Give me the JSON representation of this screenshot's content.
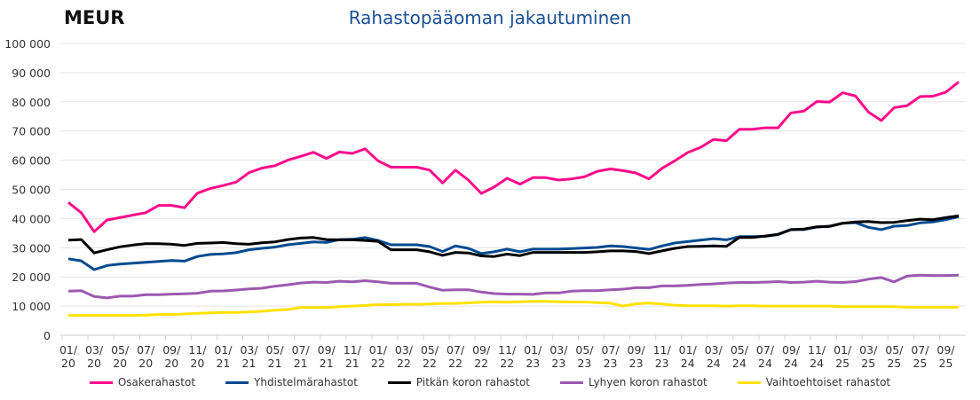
{
  "chart_data": {
    "type": "line",
    "title": "Rahastopääoman jakautuminen",
    "unit_label": "MEUR",
    "ylim": [
      0,
      100000
    ],
    "yticks": [
      0,
      10000,
      20000,
      30000,
      40000,
      50000,
      60000,
      70000,
      80000,
      90000,
      100000
    ],
    "ytick_labels": [
      "0",
      "10 000",
      "20 000",
      "30 000",
      "40 000",
      "50 000",
      "60 000",
      "70 000",
      "80 000",
      "90 000",
      "100 000"
    ],
    "grid": true,
    "legend": "bottom",
    "categories": [
      "01/20",
      "02/20",
      "03/20",
      "04/20",
      "05/20",
      "06/20",
      "07/20",
      "08/20",
      "09/20",
      "10/20",
      "11/20",
      "12/20",
      "01/21",
      "02/21",
      "03/21",
      "04/21",
      "05/21",
      "06/21",
      "07/21",
      "08/21",
      "09/21",
      "10/21",
      "11/21",
      "12/21",
      "01/22",
      "02/22",
      "03/22",
      "04/22",
      "05/22",
      "06/22",
      "07/22",
      "08/22",
      "09/22",
      "10/22",
      "11/22",
      "12/22",
      "01/23",
      "02/23",
      "03/23",
      "04/23",
      "05/23",
      "06/23",
      "07/23",
      "08/23",
      "09/23",
      "10/23",
      "11/23",
      "12/23",
      "01/24",
      "02/24",
      "03/24",
      "04/24",
      "05/24",
      "06/24",
      "07/24",
      "08/24",
      "09/24",
      "10/24",
      "11/24",
      "12/24",
      "01/25",
      "02/25",
      "03/25",
      "04/25",
      "05/25",
      "06/25",
      "07/25",
      "08/25",
      "09/25",
      "10/25"
    ],
    "series": [
      {
        "name": "Osakerahastot",
        "color": "#ff0a8a",
        "values": [
          45500,
          42000,
          35500,
          39500,
          40300,
          41200,
          42000,
          44500,
          44500,
          43700,
          48700,
          50300,
          51300,
          52500,
          55700,
          57300,
          58100,
          60000,
          61300,
          62700,
          60600,
          62800,
          62300,
          63900,
          59800,
          57600,
          57600,
          57600,
          56600,
          52200,
          56600,
          53200,
          48600,
          50800,
          53800,
          51800,
          54000,
          54000,
          53200,
          53600,
          54300,
          56200,
          57000,
          56400,
          55600,
          53600,
          57200,
          59800,
          62600,
          64400,
          67100,
          66700,
          70600,
          70600,
          71100,
          71100,
          76200,
          76800,
          80100,
          79900,
          83100,
          82000,
          76500,
          73600,
          78000,
          78700,
          81800,
          81900,
          83300,
          86800
        ]
      },
      {
        "name": "Yhdistelmärahastot",
        "color": "#004a90",
        "values": [
          26200,
          25500,
          22500,
          23900,
          24400,
          24700,
          25000,
          25300,
          25600,
          25400,
          27000,
          27700,
          27900,
          28300,
          29300,
          29800,
          30200,
          31000,
          31500,
          32000,
          31800,
          32800,
          32900,
          33500,
          32500,
          31000,
          31000,
          31000,
          30400,
          28700,
          30600,
          29800,
          28000,
          28600,
          29500,
          28600,
          29500,
          29500,
          29500,
          29700,
          29900,
          30100,
          30600,
          30400,
          29900,
          29400,
          30600,
          31600,
          32100,
          32600,
          33100,
          32700,
          33800,
          33800,
          33900,
          34500,
          36200,
          36200,
          37100,
          37400,
          38400,
          38600,
          37000,
          36200,
          37400,
          37600,
          38500,
          38800,
          39600,
          40600
        ]
      },
      {
        "name": "Pitkän koron rahastot",
        "color": "#000000",
        "values": [
          32600,
          32800,
          28200,
          29300,
          30300,
          30900,
          31400,
          31400,
          31200,
          30800,
          31500,
          31600,
          31800,
          31400,
          31200,
          31700,
          32000,
          32800,
          33300,
          33500,
          32800,
          32700,
          32700,
          32500,
          32200,
          29300,
          29300,
          29300,
          28600,
          27400,
          28400,
          28200,
          27200,
          27000,
          27800,
          27300,
          28400,
          28400,
          28400,
          28400,
          28400,
          28600,
          28900,
          28900,
          28700,
          28000,
          28900,
          29800,
          30400,
          30500,
          30600,
          30500,
          33500,
          33500,
          34000,
          34600,
          36200,
          36400,
          37100,
          37300,
          38400,
          38800,
          39000,
          38600,
          38700,
          39300,
          39800,
          39600,
          40300,
          40900
        ]
      },
      {
        "name": "Lyhyen koron rahastot",
        "color": "#9b59b0",
        "values": [
          15100,
          15300,
          13300,
          12800,
          13400,
          13400,
          13900,
          13900,
          14100,
          14200,
          14400,
          15100,
          15200,
          15500,
          15900,
          16100,
          16800,
          17300,
          17900,
          18200,
          18100,
          18500,
          18300,
          18700,
          18300,
          17800,
          17800,
          17800,
          16500,
          15400,
          15600,
          15600,
          14800,
          14300,
          14100,
          14100,
          14000,
          14500,
          14500,
          15100,
          15300,
          15300,
          15600,
          15800,
          16300,
          16300,
          16900,
          16900,
          17100,
          17400,
          17600,
          17900,
          18100,
          18100,
          18200,
          18400,
          18100,
          18200,
          18500,
          18200,
          18100,
          18400,
          19200,
          19800,
          18300,
          20300,
          20600,
          20500,
          20500,
          20600
        ]
      },
      {
        "name": "Vaihtoehtoiset rahastot",
        "color": "#ffe100",
        "values": [
          6800,
          6800,
          6800,
          6800,
          6800,
          6800,
          6900,
          7100,
          7100,
          7300,
          7500,
          7700,
          7800,
          7800,
          8000,
          8200,
          8600,
          8800,
          9500,
          9500,
          9500,
          9800,
          10000,
          10200,
          10500,
          10500,
          10600,
          10600,
          10700,
          10900,
          10900,
          11100,
          11300,
          11500,
          11300,
          11500,
          11600,
          11600,
          11500,
          11400,
          11400,
          11200,
          11000,
          10000,
          10800,
          11000,
          10700,
          10300,
          10100,
          10100,
          10100,
          10000,
          10100,
          10100,
          10000,
          10000,
          10000,
          10000,
          10000,
          10000,
          9800,
          9800,
          9800,
          9800,
          9800,
          9600,
          9600,
          9600,
          9600,
          9600
        ]
      }
    ]
  }
}
